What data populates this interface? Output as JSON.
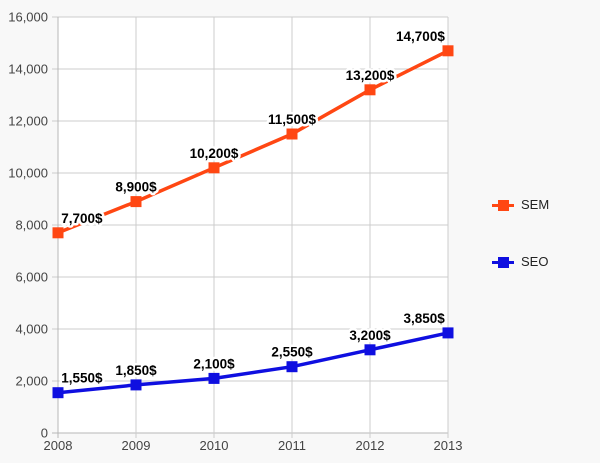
{
  "chart_data": {
    "type": "line",
    "title": "",
    "xlabel": "",
    "ylabel": "",
    "x_categories": [
      "2008",
      "2009",
      "2010",
      "2011",
      "2012",
      "2013"
    ],
    "series": [
      {
        "name": "SEM",
        "color": "#ff4713",
        "values": [
          7700,
          8900,
          10200,
          11500,
          13200,
          14700
        ],
        "point_labels": [
          "7,700$",
          "8,900$",
          "10,200$",
          "11,500$",
          "13,200$",
          "14,700$"
        ]
      },
      {
        "name": "SEO",
        "color": "#0f0fe0",
        "values": [
          1550,
          1850,
          2100,
          2550,
          3200,
          3850
        ],
        "point_labels": [
          "1,550$",
          "1,850$",
          "2,100$",
          "2,550$",
          "3,200$",
          "3,850$"
        ]
      }
    ],
    "ylim": [
      0,
      16000
    ],
    "ytick_step": 2000,
    "ytick_labels": [
      "0",
      "2,000",
      "4,000",
      "6,000",
      "8,000",
      "10,000",
      "12,000",
      "14,000",
      "16,000"
    ],
    "grid": true,
    "legend_position": "right",
    "marker_shape": "square"
  },
  "colors": {
    "background": "#f8f8f8",
    "plot_background": "#ffffff",
    "gridline": "#cccccc",
    "axis_line": "#b7b7b7",
    "tick_text": "#444444",
    "annotation_text": "#000000",
    "annotation_halo": "#ffffff",
    "legend_text": "#222222"
  }
}
